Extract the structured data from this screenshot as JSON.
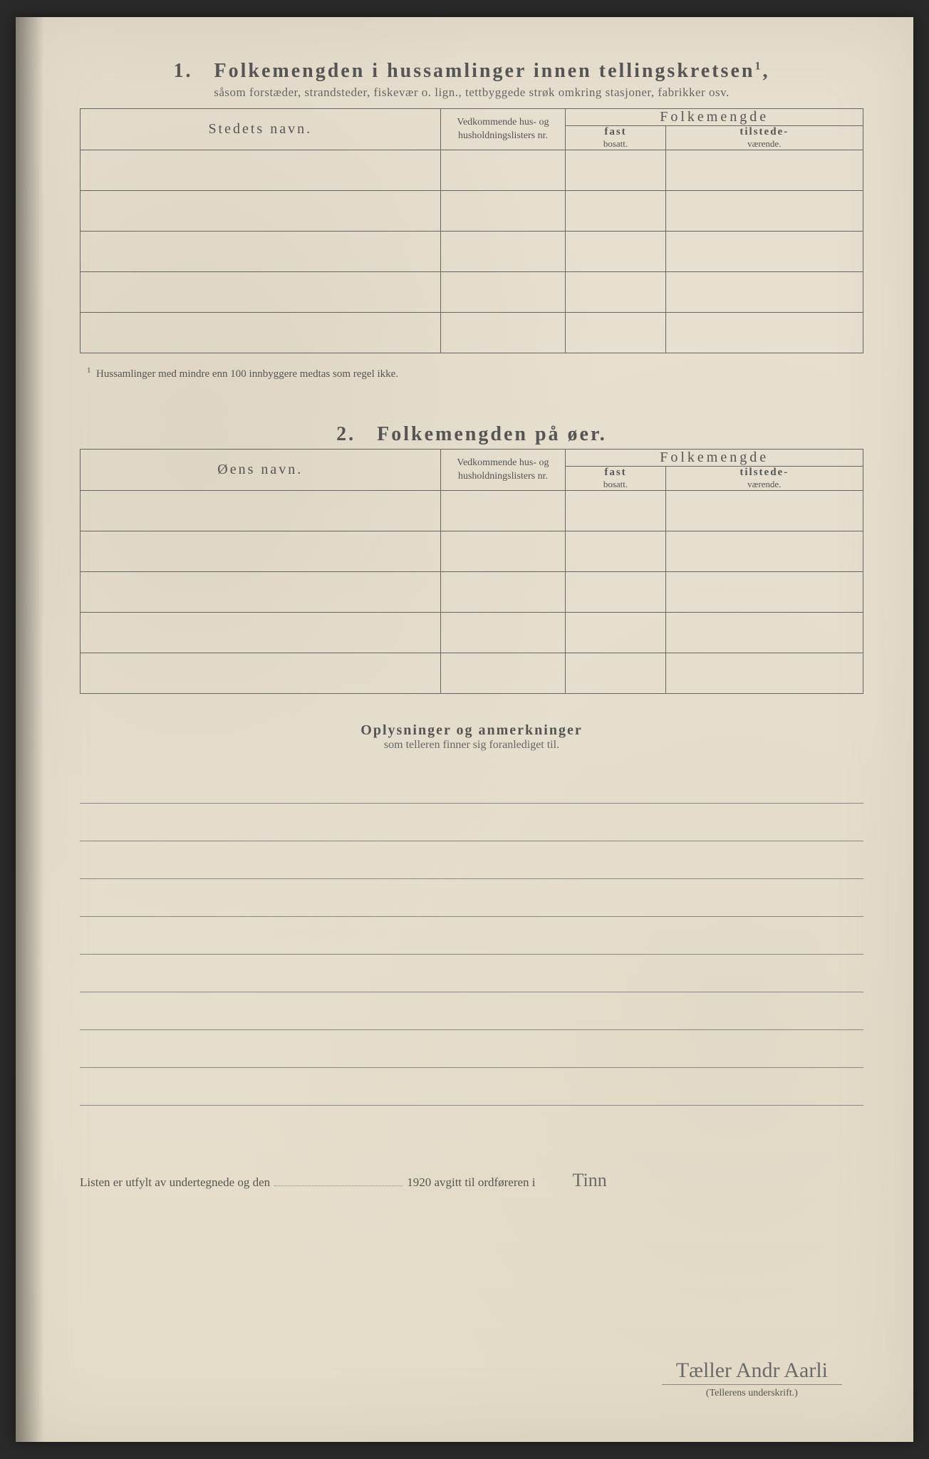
{
  "section1": {
    "number": "1.",
    "title": "Folkemengden i hussamlinger innen tellingskretsen",
    "title_sup": "1",
    "subtitle": "såsom forstæder, strandsteder, fiskevær o. lign., tettbyggede strøk omkring stasjoner, fabrikker osv.",
    "col_name": "Stedets navn.",
    "col_ref": "Vedkommende hus- og husholdningslisters nr.",
    "col_pop": "Folkemengde",
    "col_fast": "fast",
    "col_fast_sub": "bosatt.",
    "col_til": "tilstede-",
    "col_til_sub": "værende.",
    "footnote_sup": "1",
    "footnote": "Hussamlinger med mindre enn 100 innbyggere medtas som regel ikke.",
    "row_count": 5
  },
  "section2": {
    "number": "2.",
    "title": "Folkemengden på øer.",
    "col_name": "Øens navn.",
    "col_ref": "Vedkommende hus- og husholdningslisters nr.",
    "col_pop": "Folkemengde",
    "col_fast": "fast",
    "col_fast_sub": "bosatt.",
    "col_til": "tilstede-",
    "col_til_sub": "værende.",
    "row_count": 5
  },
  "remarks": {
    "title": "Oplysninger og anmerkninger",
    "subtitle": "som telleren finner sig foranlediget til.",
    "line_count": 9
  },
  "signature": {
    "pre": "Listen er utfylt av undertegnede og den",
    "year": "1920",
    "mid": "avgitt til ordføreren i",
    "place_hand": "Tinn",
    "sig_hand": "Tæller Andr Aarli",
    "caption": "(Tellerens underskrift.)"
  }
}
